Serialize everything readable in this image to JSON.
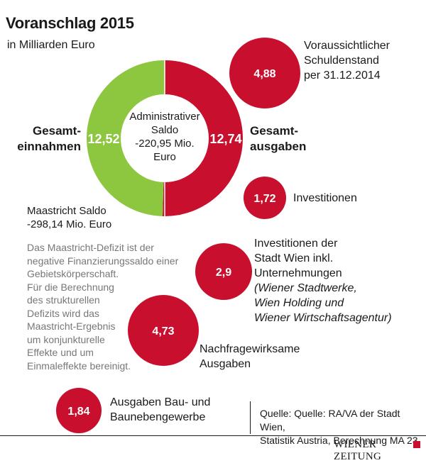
{
  "header": {
    "title": "Voranschlag 2015",
    "subtitle": "in Milliarden Euro"
  },
  "chart_data": {
    "type": "pie",
    "title": "Voranschlag 2015",
    "subtitle": "in Milliarden Euro",
    "slices": [
      {
        "name": "Gesamteinnahmen",
        "value": 12.52,
        "value_label": "12,52",
        "color": "#8dc63f"
      },
      {
        "name": "Gesamtausgaben",
        "value": 12.74,
        "value_label": "12,74",
        "color": "#c8102e"
      }
    ],
    "center_label_lines": [
      "Administrativer",
      "Saldo",
      "-220,95 Mio.",
      "Euro"
    ],
    "bubbles": [
      {
        "value": 4.88,
        "value_label": "4,88",
        "lines": [
          "Voraussichtlicher",
          "Schuldenstand",
          "per 31.12.2014"
        ],
        "italic_lines": []
      },
      {
        "value": 1.72,
        "value_label": "1,72",
        "lines": [
          "Investitionen"
        ],
        "italic_lines": []
      },
      {
        "value": 2.9,
        "value_label": "2,9",
        "lines": [
          "Investitionen der",
          "Stadt Wien inkl.",
          "Unternehmungen"
        ],
        "italic_lines": [
          "(Wiener Stadtwerke,",
          "Wien Holding und",
          "Wiener Wirtschaftsagentur)"
        ]
      },
      {
        "value": 4.73,
        "value_label": "4,73",
        "lines": [
          "Nachfragewirksame",
          "Ausgaben"
        ],
        "italic_lines": []
      },
      {
        "value": 1.84,
        "value_label": "1,84",
        "lines": [
          "Ausgaben Bau- und",
          "Baunebengewerbe"
        ],
        "italic_lines": []
      }
    ],
    "bubble_color": "#c8102e"
  },
  "labels": {
    "income_line1": "Gesamt-",
    "income_line2": "einnahmen",
    "expense_line1": "Gesamt-",
    "expense_line2": "ausgaben"
  },
  "maastricht": {
    "line1": "Maastricht Saldo",
    "line2": "-298,14 Mio. Euro"
  },
  "explanation_lines": [
    "Das Maastricht-Defizit ist der",
    "negative Finanzierungssaldo einer",
    "Gebietskörperschaft.",
    "Für die Berechnung",
    "des strukturellen",
    "Defizits wird das",
    "Maastricht-Ergebnis",
    "um konjunkturelle",
    "Effekte und um",
    "Einmaleffekte bereinigt."
  ],
  "source": {
    "line1": "Quelle: Quelle: RA/VA der Stadt Wien,",
    "line2": "Statistik Austria, Berechnung MA 23"
  },
  "logo": {
    "text": "WIENER ZEITUNG",
    "color": "#c8102e"
  }
}
